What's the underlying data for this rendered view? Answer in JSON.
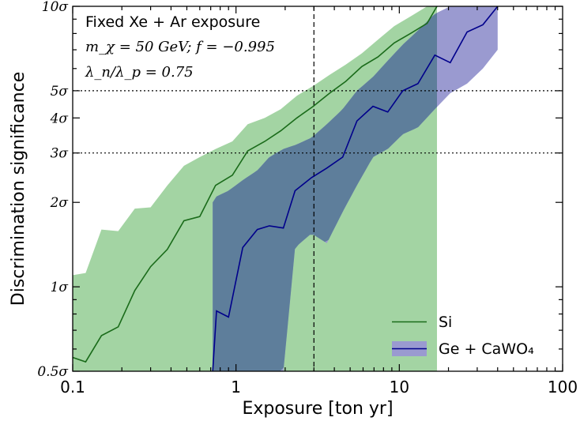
{
  "chart_data": {
    "type": "area",
    "title": "",
    "xlabel": "Exposure [ton yr]",
    "ylabel": "Discrimination significance",
    "xscale": "log",
    "yscale": "log",
    "xlim": [
      0.1,
      100
    ],
    "ylim": [
      0.5,
      10
    ],
    "x_ticks": [
      {
        "value": 0.1,
        "label": "0.1"
      },
      {
        "value": 1,
        "label": "1"
      },
      {
        "value": 10,
        "label": "10"
      },
      {
        "value": 100,
        "label": "100"
      }
    ],
    "y_ticks": [
      {
        "value": 0.5,
        "label": "0.5σ"
      },
      {
        "value": 1,
        "label": "1σ"
      },
      {
        "value": 2,
        "label": "2σ"
      },
      {
        "value": 3,
        "label": "3σ"
      },
      {
        "value": 4,
        "label": "4σ"
      },
      {
        "value": 5,
        "label": "5σ"
      },
      {
        "value": 10,
        "label": "10σ"
      }
    ],
    "annotations": {
      "line1": "Fixed Xe + Ar exposure",
      "line2": "m_χ = 50 GeV; f = −0.995",
      "line3": "λ_n/λ_p = 0.75"
    },
    "reference_lines": {
      "vertical_dashed_x": 3,
      "horizontal_dotted_y": [
        3,
        5
      ]
    },
    "legend_position": "bottom-right",
    "colors": {
      "si_band": "#a3d4a3",
      "si_line": "#1a6b1a",
      "ge_band": "#9a9ad0",
      "ge_line": "#00008b",
      "overlap": "#5e7e9b"
    },
    "series": [
      {
        "name": "Si",
        "x": [
          0.1,
          0.12,
          0.15,
          0.19,
          0.24,
          0.3,
          0.38,
          0.48,
          0.6,
          0.75,
          0.95,
          1.18,
          1.5,
          1.88,
          2.36,
          2.97,
          3.74,
          4.7,
          5.9,
          7.4,
          9.3,
          11.7,
          14.8,
          17.0
        ],
        "y": [
          0.56,
          0.54,
          0.67,
          0.72,
          0.97,
          1.18,
          1.36,
          1.72,
          1.78,
          2.3,
          2.5,
          3.05,
          3.3,
          3.6,
          4.0,
          4.4,
          4.9,
          5.4,
          6.1,
          6.6,
          7.4,
          8.0,
          8.7,
          10.0
        ],
        "lower": [
          0.5,
          0.5,
          0.5,
          0.5,
          0.5,
          0.5,
          0.5,
          0.5,
          0.5,
          0.5,
          0.5,
          0.5,
          0.5,
          0.5,
          0.5,
          0.5,
          0.5,
          0.5,
          0.5,
          0.5,
          0.5,
          0.5,
          0.5,
          0.5
        ],
        "upper": [
          1.1,
          1.12,
          1.6,
          1.58,
          1.9,
          1.92,
          2.3,
          2.7,
          2.9,
          3.1,
          3.3,
          3.8,
          4.0,
          4.3,
          4.8,
          5.2,
          5.7,
          6.2,
          6.8,
          7.6,
          8.5,
          9.2,
          10.0,
          10.0
        ]
      },
      {
        "name": "Ge + CaWO₄",
        "x": [
          0.72,
          0.76,
          0.9,
          1.1,
          1.35,
          1.6,
          1.95,
          2.3,
          2.9,
          3.6,
          4.5,
          5.5,
          6.9,
          8.5,
          10.5,
          13.0,
          16.5,
          20.5,
          26.0,
          32.5,
          40.0
        ],
        "y": [
          0.5,
          0.82,
          0.78,
          1.38,
          1.6,
          1.65,
          1.62,
          2.2,
          2.45,
          2.65,
          2.9,
          3.9,
          4.4,
          4.2,
          5.0,
          5.3,
          6.7,
          6.3,
          8.1,
          8.6,
          10.0
        ],
        "lower": [
          0.5,
          0.5,
          0.5,
          0.5,
          0.5,
          0.5,
          0.5,
          1.38,
          1.55,
          1.43,
          1.85,
          2.3,
          2.9,
          3.1,
          3.5,
          3.7,
          4.3,
          4.9,
          5.3,
          6.0,
          7.0
        ],
        "upper": [
          2.0,
          2.1,
          2.2,
          2.4,
          2.6,
          2.9,
          3.1,
          3.2,
          3.4,
          3.8,
          4.3,
          5.0,
          5.6,
          6.4,
          7.3,
          8.2,
          9.4,
          10.0,
          10.0,
          10.0,
          10.0
        ]
      }
    ]
  }
}
